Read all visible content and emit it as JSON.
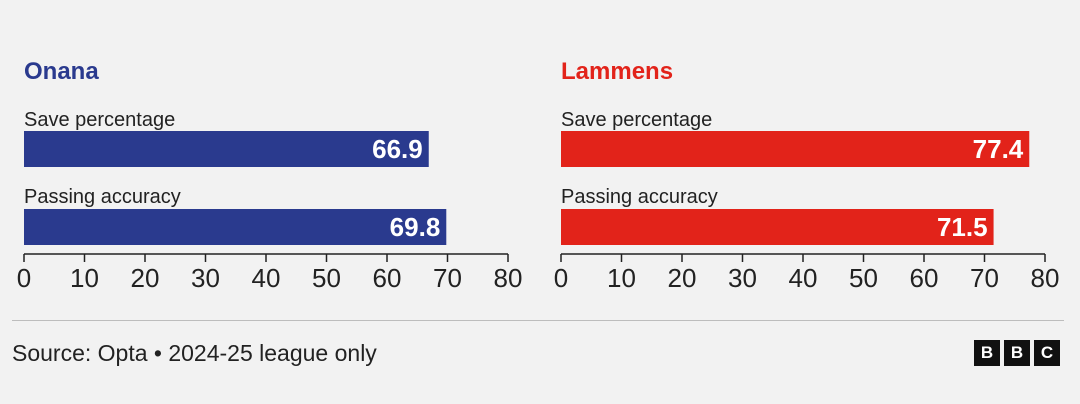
{
  "chart_data": [
    {
      "type": "bar",
      "orientation": "horizontal",
      "title": "Onana",
      "color": "#2a3a8e",
      "categories": [
        "Save percentage",
        "Passing accuracy"
      ],
      "values": [
        66.9,
        69.8
      ],
      "xlim": [
        0,
        80
      ],
      "ticks": [
        0,
        10,
        20,
        30,
        40,
        50,
        60,
        70,
        80
      ]
    },
    {
      "type": "bar",
      "orientation": "horizontal",
      "title": "Lammens",
      "color": "#e2231a",
      "categories": [
        "Save percentage",
        "Passing accuracy"
      ],
      "values": [
        77.4,
        71.5
      ],
      "xlim": [
        0,
        80
      ],
      "ticks": [
        0,
        10,
        20,
        30,
        40,
        50,
        60,
        70,
        80
      ]
    }
  ],
  "footer": {
    "source": "Source: Opta • 2024-25 league only",
    "logo_letters": [
      "B",
      "B",
      "C"
    ]
  }
}
